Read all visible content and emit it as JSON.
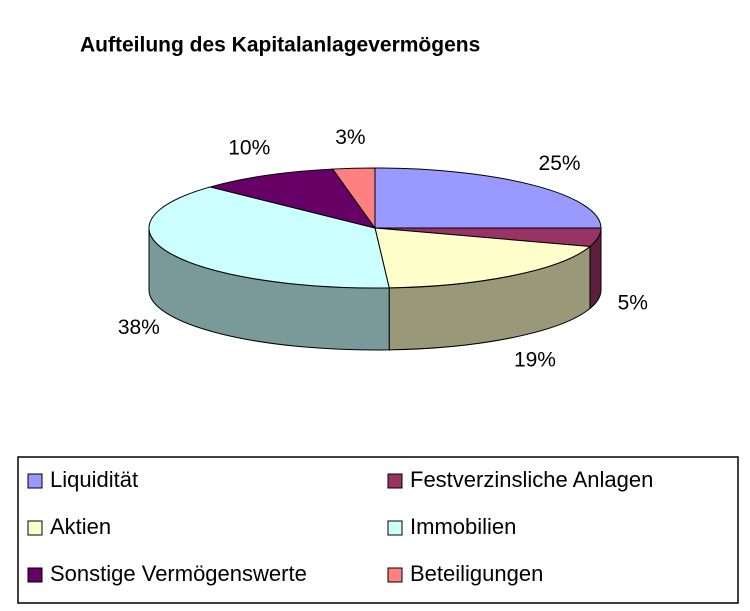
{
  "chart_data": {
    "type": "pie",
    "title": "Aufteilung des Kapitalanlagevermögens",
    "categories": [
      "Liquidität",
      "Festverzinsliche Anlagen",
      "Aktien",
      "Immobilien",
      "Sonstige Vermögenswerte",
      "Beteiligungen"
    ],
    "values": [
      25,
      5,
      19,
      38,
      10,
      3
    ],
    "value_labels": [
      "25%",
      "5%",
      "19%",
      "38%",
      "10%",
      "3%"
    ],
    "colors": [
      "#9999ff",
      "#993366",
      "#ffffcc",
      "#ccffff",
      "#660066",
      "#ff8080"
    ],
    "legend": "bottom"
  }
}
